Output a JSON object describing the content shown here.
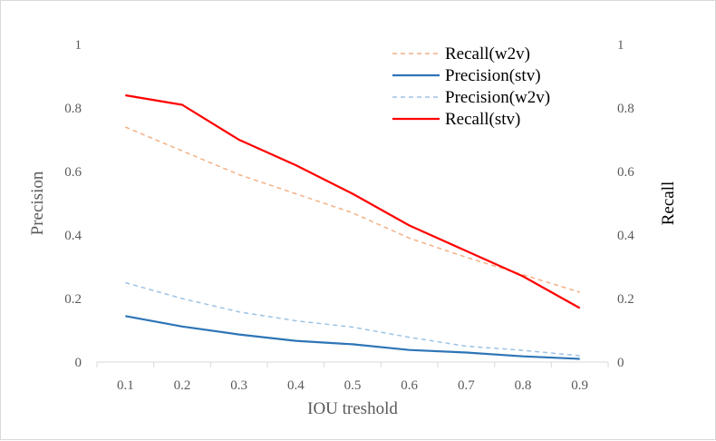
{
  "chart_data": {
    "type": "line",
    "title": "",
    "xlabel": "IOU treshold",
    "ylabel": "Precision",
    "y2label": "Recall",
    "x": [
      0.1,
      0.2,
      0.3,
      0.4,
      0.5,
      0.6,
      0.7,
      0.8,
      0.9
    ],
    "x_tick_labels": [
      "0.1",
      "0.2",
      "0.3",
      "0.4",
      "0.5",
      "0.6",
      "0.7",
      "0.8",
      "0.9"
    ],
    "ylim": [
      0,
      1
    ],
    "y2lim": [
      0,
      1
    ],
    "y_tick_labels": [
      "0",
      "0.2",
      "0.4",
      "0.6",
      "0.8",
      "1"
    ],
    "y2_tick_labels": [
      "0",
      "0.2",
      "0.4",
      "0.6",
      "0.8",
      "1"
    ],
    "grid": false,
    "legend_position": "top-right",
    "series": [
      {
        "name": "Recall(w2v)",
        "axis": "right",
        "color": "#f4b183",
        "dashed": true,
        "values": [
          0.74,
          0.665,
          0.59,
          0.53,
          0.47,
          0.39,
          0.33,
          0.275,
          0.22
        ]
      },
      {
        "name": "Precision(stv)",
        "axis": "left",
        "color": "#2e75b6",
        "dashed": false,
        "values": [
          0.145,
          0.112,
          0.087,
          0.067,
          0.056,
          0.038,
          0.03,
          0.018,
          0.01
        ]
      },
      {
        "name": "Precision(w2v)",
        "axis": "left",
        "color": "#9dc3e6",
        "dashed": true,
        "values": [
          0.25,
          0.2,
          0.158,
          0.13,
          0.11,
          0.078,
          0.05,
          0.037,
          0.02
        ]
      },
      {
        "name": "Recall(stv)",
        "axis": "right",
        "color": "#ff0000",
        "dashed": false,
        "values": [
          0.84,
          0.81,
          0.7,
          0.62,
          0.53,
          0.43,
          0.35,
          0.27,
          0.17
        ]
      }
    ]
  }
}
